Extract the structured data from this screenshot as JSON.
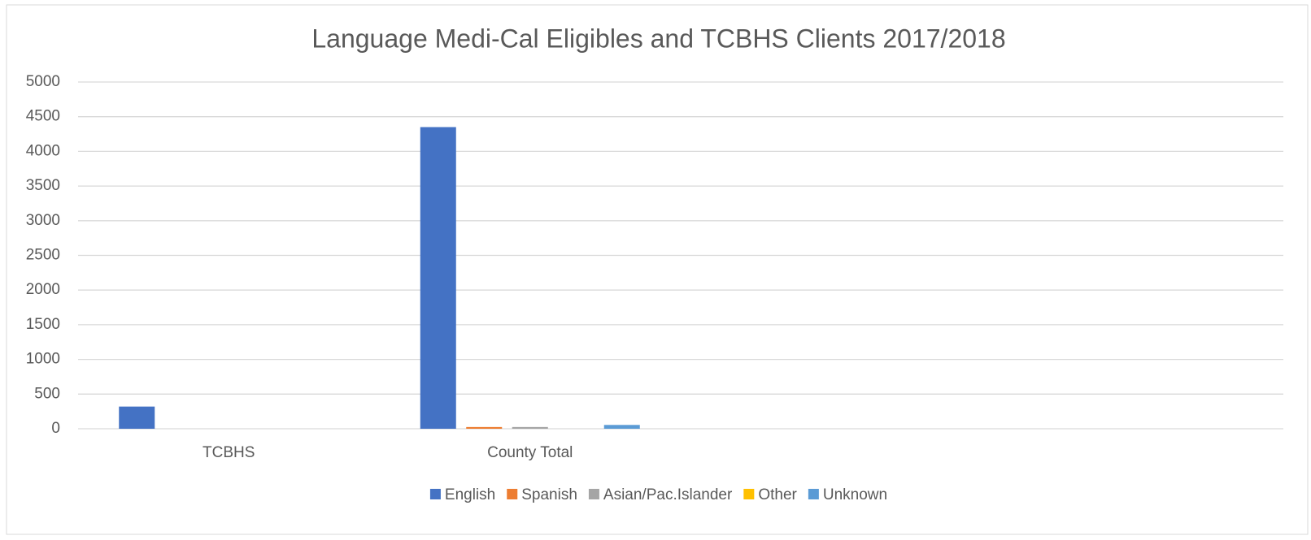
{
  "chart_data": {
    "type": "bar",
    "title": "Language Medi-Cal Eligibles and TCBHS Clients 2017/2018",
    "categories": [
      "TCBHS",
      "County Total",
      null,
      null
    ],
    "series": [
      {
        "name": "English",
        "color": "#4472c4",
        "values": [
          320,
          4350,
          null,
          null
        ]
      },
      {
        "name": "Spanish",
        "color": "#ed7d31",
        "values": [
          0,
          25,
          null,
          null
        ]
      },
      {
        "name": "Asian/Pac.Islander",
        "color": "#a5a5a5",
        "values": [
          0,
          25,
          null,
          null
        ]
      },
      {
        "name": "Other",
        "color": "#ffc000",
        "values": [
          0,
          0,
          null,
          null
        ]
      },
      {
        "name": "Unknown",
        "color": "#5b9bd5",
        "values": [
          0,
          55,
          null,
          null
        ]
      }
    ],
    "ylim": [
      0,
      5000
    ],
    "yticks": [
      0,
      500,
      1000,
      1500,
      2000,
      2500,
      3000,
      3500,
      4000,
      4500,
      5000
    ],
    "grid": true,
    "legend": "bottom"
  }
}
